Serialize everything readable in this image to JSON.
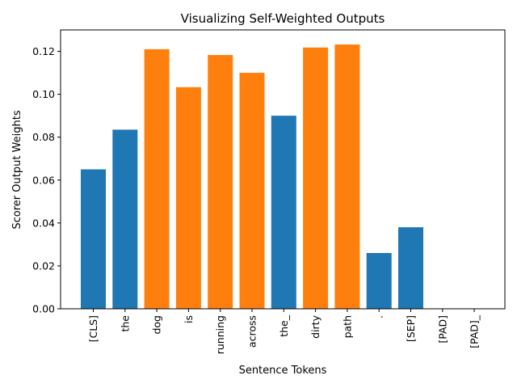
{
  "chart_data": {
    "type": "bar",
    "title": "Visualizing Self-Weighted Outputs",
    "xlabel": "Sentence Tokens",
    "ylabel": "Scorer Output Weights",
    "ylim": [
      0,
      0.13
    ],
    "yticks": [
      "0.00",
      "0.02",
      "0.04",
      "0.06",
      "0.08",
      "0.10",
      "0.12"
    ],
    "categories": [
      "[CLS]",
      "the",
      "dog",
      "is",
      "running",
      "across",
      "the_",
      "dirty",
      "path",
      ".",
      "[SEP]",
      "[PAD]",
      "[PAD]_"
    ],
    "values": [
      0.065,
      0.0835,
      0.121,
      0.1033,
      0.1183,
      0.11,
      0.09,
      0.1218,
      0.1232,
      0.026,
      0.038,
      0.0,
      0.0
    ],
    "bar_colors": [
      "#1f77b4",
      "#1f77b4",
      "#ff7f0e",
      "#ff7f0e",
      "#ff7f0e",
      "#ff7f0e",
      "#1f77b4",
      "#ff7f0e",
      "#ff7f0e",
      "#1f77b4",
      "#1f77b4",
      "#1f77b4",
      "#1f77b4"
    ],
    "grid": false,
    "legend": "none"
  }
}
